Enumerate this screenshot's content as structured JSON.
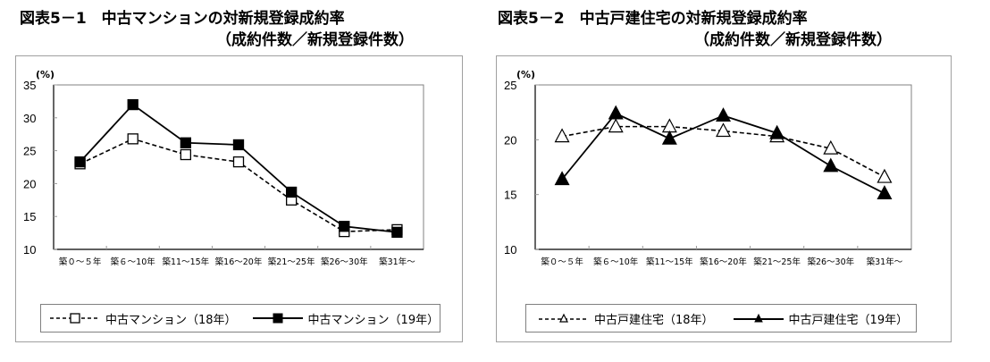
{
  "charts": [
    {
      "title": "図表5－1　中古マンションの対新規登録成約率",
      "subtitle": "（成約件数／新規登録件数）",
      "unit": "(%)",
      "legend": [
        "中古マンション（18年）",
        "中古マンション（19年）"
      ]
    },
    {
      "title": "図表5－2　中古戸建住宅の対新規登録成約率",
      "subtitle": "（成約件数／新規登録件数）",
      "unit": "(%)",
      "legend": [
        "中古戸建住宅（18年）",
        "中古戸建住宅（19年）"
      ]
    }
  ],
  "chart_data": [
    {
      "type": "line",
      "title": "図表5－1　中古マンションの対新規登録成約率（成約件数／新規登録件数）",
      "xlabel": "",
      "ylabel": "(%)",
      "ylim": [
        10,
        35
      ],
      "yticks": [
        10,
        15,
        20,
        25,
        30,
        35
      ],
      "grid": false,
      "legend_position": "bottom",
      "categories": [
        "築０～５年",
        "築６～10年",
        "築11～15年",
        "築16～20年",
        "築21～25年",
        "築26～30年",
        "築31年～"
      ],
      "series": [
        {
          "name": "中古マンション（18年）",
          "style": "dashed",
          "marker": "open-square",
          "values": [
            23.0,
            26.8,
            24.4,
            23.3,
            17.5,
            12.7,
            13.0
          ]
        },
        {
          "name": "中古マンション（19年）",
          "style": "solid",
          "marker": "filled-square",
          "values": [
            23.3,
            32.0,
            26.2,
            25.9,
            18.7,
            13.5,
            12.6
          ]
        }
      ]
    },
    {
      "type": "line",
      "title": "図表5－2　中古戸建住宅の対新規登録成約率（成約件数／新規登録件数）",
      "xlabel": "",
      "ylabel": "(%)",
      "ylim": [
        10,
        25
      ],
      "yticks": [
        10,
        15,
        20,
        25
      ],
      "grid": false,
      "legend_position": "bottom",
      "categories": [
        "築０～５年",
        "築６～10年",
        "築11～15年",
        "築16～20年",
        "築21～25年",
        "築26～30年",
        "築31年～"
      ],
      "series": [
        {
          "name": "中古戸建住宅（18年）",
          "style": "dashed",
          "marker": "open-triangle",
          "values": [
            20.3,
            21.2,
            21.2,
            20.8,
            20.3,
            19.2,
            16.6
          ]
        },
        {
          "name": "中古戸建住宅（19年）",
          "style": "solid",
          "marker": "filled-triangle",
          "values": [
            16.4,
            22.4,
            20.1,
            22.2,
            20.6,
            17.6,
            15.1
          ]
        }
      ]
    }
  ]
}
